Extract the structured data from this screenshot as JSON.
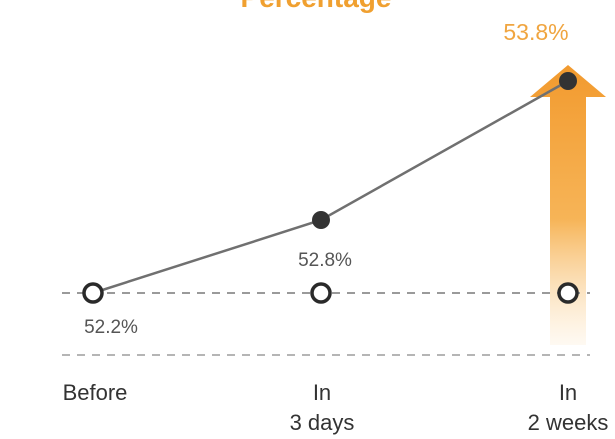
{
  "chart_data": {
    "type": "line",
    "title": "Percentage",
    "categories": [
      "Before",
      "In 3 days",
      "In 2 weeks"
    ],
    "category_lines": [
      [
        "Before"
      ],
      [
        "In",
        "3 days"
      ],
      [
        "In",
        "2 weeks"
      ]
    ],
    "series": [
      {
        "values": [
          52.2,
          52.8,
          53.8
        ],
        "labels": [
          "52.2%",
          "52.8%",
          "53.8%"
        ]
      }
    ],
    "baseline": 52.2,
    "xlabel": "",
    "ylabel": "",
    "grid": false,
    "colors": {
      "title": "#f0a030",
      "accent": "#f29a2e",
      "line": "#707070",
      "marker_filled": "#333333",
      "marker_open_stroke": "#2a2a2a",
      "dashed": "#9a9a9a"
    }
  }
}
